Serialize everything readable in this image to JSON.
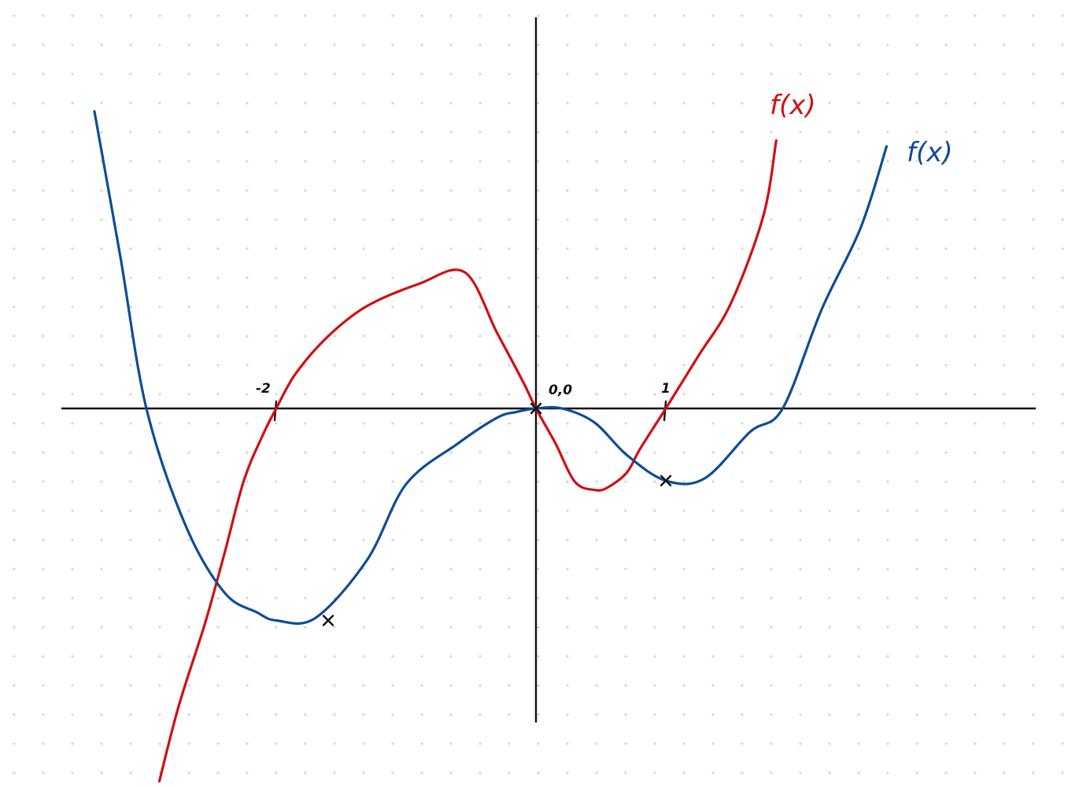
{
  "colors": {
    "background": "#ffffff",
    "dots": "#d6d6d6",
    "axis": "#111111",
    "red_curve": "#d10f12",
    "blue_curve": "#0e4c96",
    "marker": "#111111"
  },
  "chart_data": {
    "type": "line",
    "title": "",
    "xlabel": "",
    "ylabel": "",
    "grid": "dot-grid",
    "legend": "inline-right",
    "tick_labels": [
      {
        "x": -2,
        "text": "-2"
      },
      {
        "x": 0,
        "text": "0,0"
      },
      {
        "x": 1,
        "text": "1"
      }
    ],
    "series": [
      {
        "name": "f(x)",
        "color": "#d10f12",
        "x": [
          -2.9,
          -2.75,
          -2.55,
          -2.4,
          -2.25,
          -2.1,
          -2.0,
          -1.85,
          -1.6,
          -1.3,
          -0.9,
          -0.55,
          -0.3,
          -0.1,
          0.0,
          0.15,
          0.3,
          0.45,
          0.55,
          0.7,
          0.8,
          1.0,
          1.25,
          1.5,
          1.75,
          1.85
        ],
        "y": [
          -3.2,
          -2.55,
          -1.85,
          -1.25,
          -0.62,
          -0.22,
          0.0,
          0.3,
          0.62,
          0.88,
          1.07,
          1.17,
          0.65,
          0.23,
          0.0,
          -0.3,
          -0.63,
          -0.7,
          -0.68,
          -0.55,
          -0.35,
          0.0,
          0.45,
          0.9,
          1.65,
          2.3
        ]
      },
      {
        "name": "f(x)",
        "color": "#0e4c96",
        "x": [
          -3.4,
          -3.2,
          -3.0,
          -2.7,
          -2.4,
          -2.15,
          -2.0,
          -1.7,
          -1.3,
          -1.0,
          -0.6,
          -0.3,
          -0.15,
          0.0,
          0.2,
          0.45,
          0.7,
          1.0,
          1.3,
          1.65,
          1.9,
          2.2,
          2.5,
          2.7
        ],
        "y": [
          2.55,
          1.3,
          0.0,
          -1.0,
          -1.58,
          -1.75,
          -1.82,
          -1.8,
          -1.3,
          -0.65,
          -0.3,
          -0.08,
          -0.03,
          0.0,
          0.0,
          -0.12,
          -0.4,
          -0.62,
          -0.6,
          -0.2,
          0.0,
          0.85,
          1.55,
          2.25
        ]
      }
    ],
    "markers": [
      {
        "x": -1.6,
        "y": -1.82
      },
      {
        "x": 1.0,
        "y": -0.62
      },
      {
        "x": 0.0,
        "y": 0.0
      }
    ]
  }
}
